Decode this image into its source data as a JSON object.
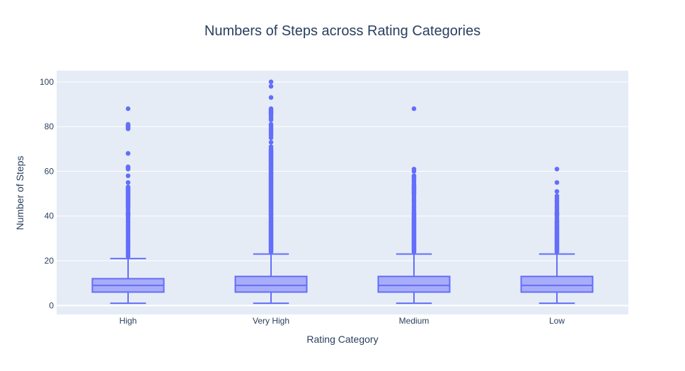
{
  "chart_data": {
    "type": "box",
    "title": "Numbers of Steps across Rating Categories",
    "xlabel": "Rating Category",
    "ylabel": "Number of Steps",
    "ylim": [
      -4,
      105
    ],
    "yticks": [
      0,
      20,
      40,
      60,
      80,
      100
    ],
    "grid": true,
    "legend": "none",
    "colors": {
      "box": "#636efa",
      "box_fill": "#a8adf8",
      "plot_bg": "#e5ecf6",
      "grid": "#ffffff",
      "text": "#2a3f5f"
    },
    "categories": [
      "High",
      "Very High",
      "Medium",
      "Low"
    ],
    "boxes": [
      {
        "category": "High",
        "min": 1,
        "q1": 6,
        "median": 9,
        "q3": 12,
        "upper_fence": 21,
        "outliers": [
          88,
          81,
          80.5,
          80,
          79.5,
          79,
          68,
          62,
          61.5,
          61,
          58,
          55,
          53,
          52.5,
          52,
          51.5,
          51,
          50.5,
          50,
          49.5,
          49,
          48.5,
          48,
          47.5,
          47,
          46.5,
          46,
          45.5,
          45,
          44.5,
          44,
          43,
          42,
          41.5,
          41,
          40.5,
          40,
          39,
          38,
          37,
          36,
          35,
          34,
          33,
          32,
          31,
          30,
          29,
          28,
          27,
          26,
          25,
          24,
          23,
          22
        ]
      },
      {
        "category": "Very High",
        "min": 1,
        "q1": 6,
        "median": 9,
        "q3": 13,
        "upper_fence": 23,
        "outliers": [
          100,
          98,
          93,
          88,
          87.5,
          87,
          86.5,
          86,
          85.5,
          85,
          84,
          83,
          81,
          80,
          79,
          78,
          77,
          76,
          75,
          73,
          71,
          70,
          69.5,
          69,
          68.5,
          68,
          67.5,
          67,
          66.5,
          66,
          65.5,
          65,
          64.5,
          64,
          63.5,
          63,
          62.5,
          62,
          61.5,
          61,
          60.5,
          60,
          59.5,
          59,
          58.5,
          58,
          57.5,
          57,
          56.5,
          56,
          55.5,
          55,
          54.5,
          54,
          53.5,
          53,
          52.5,
          52,
          51.5,
          51,
          50.5,
          50,
          49.5,
          49,
          48.5,
          48,
          47.5,
          47,
          46.5,
          46,
          45.5,
          45,
          44.5,
          44,
          43.5,
          43,
          42.5,
          42,
          41.5,
          41,
          40.5,
          40,
          39.5,
          39,
          38.5,
          38,
          37.5,
          37,
          36.5,
          36,
          35.5,
          35,
          34.5,
          34,
          33.5,
          33,
          32.5,
          32,
          31.5,
          31,
          30.5,
          30,
          29.5,
          29,
          28.5,
          28,
          27.5,
          27,
          26.5,
          26,
          25.5,
          25,
          24.5,
          24
        ]
      },
      {
        "category": "Medium",
        "min": 1,
        "q1": 6,
        "median": 9,
        "q3": 13,
        "upper_fence": 23,
        "outliers": [
          88,
          61,
          60,
          58,
          57.5,
          57,
          56,
          55,
          54,
          53.5,
          53,
          52.5,
          52,
          51.5,
          51,
          50.5,
          50,
          49,
          48,
          47,
          46,
          45,
          44,
          43,
          42,
          41.5,
          41,
          40.5,
          40,
          39.5,
          39,
          38.5,
          38,
          37.5,
          37,
          36.5,
          36,
          35.5,
          35,
          34.5,
          34,
          33.5,
          33,
          32.5,
          32,
          31.5,
          31,
          30.5,
          30,
          29.5,
          29,
          28.5,
          28,
          27.5,
          27,
          26.5,
          26,
          25.5,
          25,
          24.5,
          24
        ]
      },
      {
        "category": "Low",
        "min": 1,
        "q1": 6,
        "median": 9,
        "q3": 13,
        "upper_fence": 23,
        "outliers": [
          61,
          55,
          51,
          49,
          48,
          47,
          46,
          45,
          44,
          43,
          42,
          41.5,
          41,
          40.5,
          40,
          39,
          38,
          37.5,
          37,
          36.5,
          36,
          35.5,
          35,
          34.5,
          34,
          33.5,
          33,
          32.5,
          32,
          31.5,
          31,
          30.5,
          30,
          29.5,
          29,
          28.5,
          28,
          27.5,
          27,
          26.5,
          26,
          25.5,
          25,
          24.5,
          24
        ]
      }
    ]
  }
}
